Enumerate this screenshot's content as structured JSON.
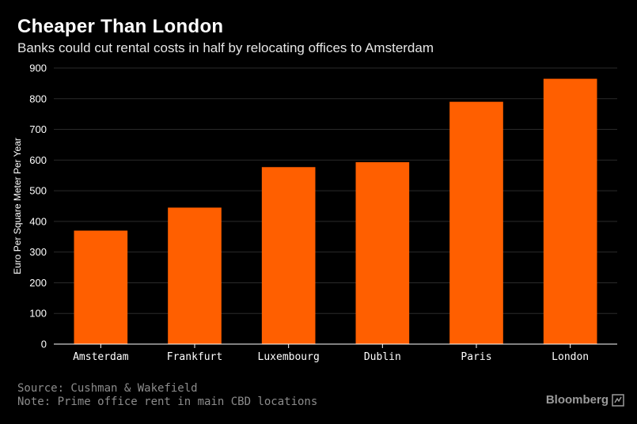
{
  "title": "Cheaper Than London",
  "subtitle": "Banks could cut rental costs in half by relocating offices to Amsterdam",
  "source": "Source: Cushman & Wakefield",
  "note": "Note: Prime office rent in main CBD locations",
  "brand": "Bloomberg",
  "brand_icon": "bloomberg-terminal-icon",
  "colors": {
    "background": "#000000",
    "bar": "#ff5f00",
    "gridline": "#2a2a2a",
    "axis": "#ffffff",
    "text": "#ffffff"
  },
  "chart_data": {
    "type": "bar",
    "categories": [
      "Amsterdam",
      "Frankfurt",
      "Luxembourg",
      "Dublin",
      "Paris",
      "London"
    ],
    "values": [
      370,
      445,
      577,
      593,
      790,
      865
    ],
    "ylabel": "Euro Per Square Meter Per Year",
    "xlabel": "",
    "ylim": [
      0,
      900
    ],
    "yticks": [
      0,
      100,
      200,
      300,
      400,
      500,
      600,
      700,
      800,
      900
    ],
    "grid": true,
    "legend": "none"
  }
}
